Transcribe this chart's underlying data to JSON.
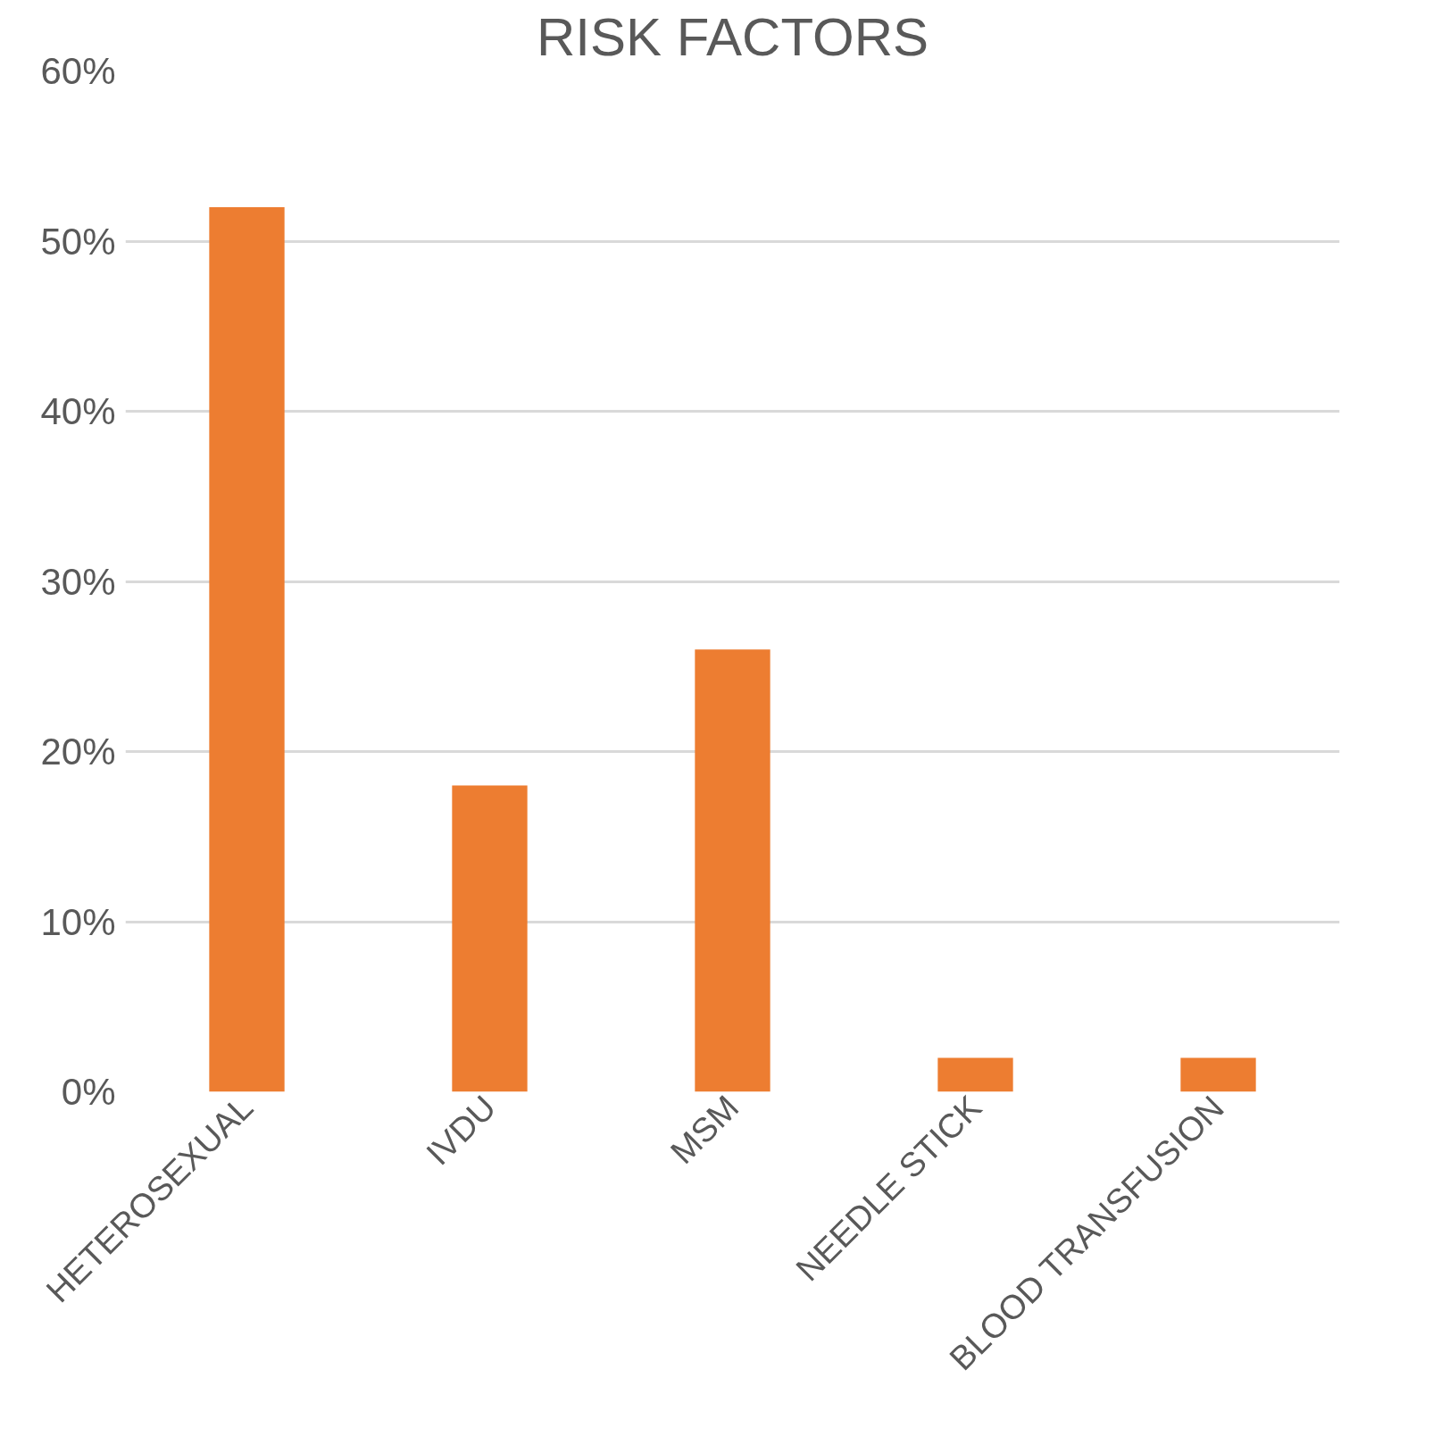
{
  "chart_data": {
    "type": "bar",
    "title": "RISK FACTORS",
    "categories": [
      "HETEROSEXUAL",
      "IVDU",
      "MSM",
      "NEEDLE STICK",
      "BLOOD TRANSFUSION"
    ],
    "values": [
      52,
      18,
      26,
      2,
      2
    ],
    "color": "#ed7d31",
    "ylim": [
      0,
      60
    ],
    "yticks": [
      {
        "value": 0,
        "label": "0%"
      },
      {
        "value": 10,
        "label": "10%"
      },
      {
        "value": 20,
        "label": "20%"
      },
      {
        "value": 30,
        "label": "30%"
      },
      {
        "value": 40,
        "label": "40%"
      },
      {
        "value": 50,
        "label": "50%"
      },
      {
        "value": 60,
        "label": "60%"
      }
    ],
    "grid": "y"
  }
}
